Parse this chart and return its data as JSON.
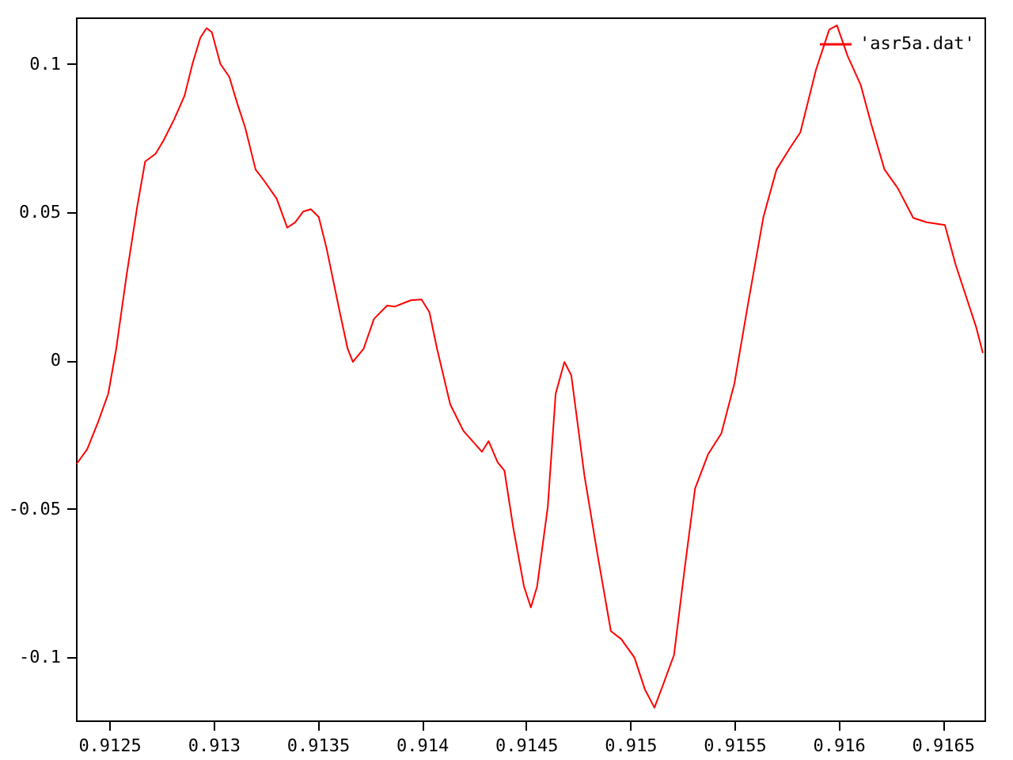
{
  "chart_data": {
    "type": "line",
    "xlim": [
      0.91234,
      0.9167
    ],
    "ylim": [
      -0.1214,
      0.1157
    ],
    "xticks": [
      0.9125,
      0.913,
      0.9135,
      0.914,
      0.9145,
      0.915,
      0.9155,
      0.916,
      0.9165
    ],
    "yticks": [
      -0.1,
      -0.05,
      0,
      0.05,
      0.1
    ],
    "grid": false,
    "legend": "top right",
    "x": [
      0.912343,
      0.912394,
      0.912445,
      0.912495,
      0.912533,
      0.912583,
      0.912634,
      0.912672,
      0.912722,
      0.91276,
      0.912811,
      0.912861,
      0.912899,
      0.912937,
      0.912967,
      0.912992,
      0.913033,
      0.913076,
      0.913114,
      0.913152,
      0.913202,
      0.91324,
      0.913303,
      0.913354,
      0.913392,
      0.91343,
      0.913467,
      0.913505,
      0.913543,
      0.913606,
      0.913644,
      0.913669,
      0.91372,
      0.91377,
      0.913833,
      0.913871,
      0.913947,
      0.913998,
      0.914036,
      0.914073,
      0.914136,
      0.914199,
      0.914288,
      0.91432,
      0.914364,
      0.914396,
      0.914439,
      0.91449,
      0.914523,
      0.914553,
      0.914604,
      0.914642,
      0.914684,
      0.914717,
      0.91478,
      0.914843,
      0.914907,
      0.914957,
      0.91502,
      0.91507,
      0.915116,
      0.915159,
      0.91521,
      0.91526,
      0.915311,
      0.915373,
      0.915437,
      0.9155,
      0.915563,
      0.915639,
      0.915702,
      0.915765,
      0.915816,
      0.915892,
      0.915955,
      0.915992,
      0.916043,
      0.916106,
      0.916157,
      0.91622,
      0.916283,
      0.916358,
      0.916422,
      0.91651,
      0.916561,
      0.916611,
      0.916661,
      0.916692
    ],
    "series": [
      {
        "name": "'asr5a.dat'",
        "color": "#ff0000",
        "values": [
          -0.0349,
          -0.0299,
          -0.021,
          -0.0112,
          0.0039,
          0.0288,
          0.0519,
          0.0671,
          0.0697,
          0.0742,
          0.0813,
          0.0893,
          0.1,
          0.1089,
          0.1121,
          0.1107,
          0.1,
          0.0956,
          0.0867,
          0.0786,
          0.0644,
          0.0609,
          0.0546,
          0.0448,
          0.0466,
          0.0502,
          0.051,
          0.0484,
          0.0377,
          0.0163,
          0.0039,
          -0.0005,
          0.0039,
          0.014,
          0.0185,
          0.0182,
          0.0203,
          0.0206,
          0.0163,
          0.0039,
          -0.0148,
          -0.0237,
          -0.0308,
          -0.0272,
          -0.0344,
          -0.0371,
          -0.0566,
          -0.0762,
          -0.0833,
          -0.0762,
          -0.0495,
          -0.0112,
          -0.0005,
          -0.005,
          -0.0388,
          -0.0655,
          -0.0913,
          -0.094,
          -0.1002,
          -0.1109,
          -0.1171,
          -0.1091,
          -0.0993,
          -0.0708,
          -0.0432,
          -0.0317,
          -0.0246,
          -0.0077,
          0.0182,
          0.0484,
          0.0644,
          0.0715,
          0.0769,
          0.0982,
          0.1116,
          0.113,
          0.1027,
          0.0929,
          0.0796,
          0.0644,
          0.0582,
          0.0481,
          0.0466,
          0.0457,
          0.0324,
          0.0217,
          0.011,
          0.0025
        ]
      }
    ]
  }
}
